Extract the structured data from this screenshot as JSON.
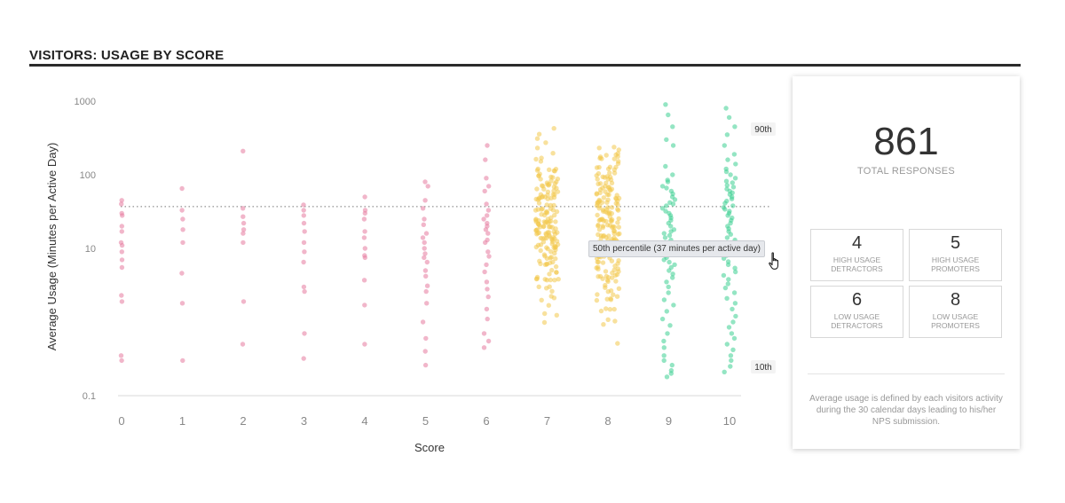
{
  "header": {
    "title": "VISITORS: USAGE BY SCORE"
  },
  "chart_data": {
    "type": "scatter",
    "title": "",
    "xlabel": "Score",
    "ylabel": "Average Usage (Minutes per Active Day)",
    "yscale": "log",
    "ylim": [
      0.1,
      1000
    ],
    "yticks": [
      "0.1",
      "10",
      "100",
      "1000"
    ],
    "categories": [
      "0",
      "1",
      "2",
      "3",
      "4",
      "5",
      "6",
      "7",
      "8",
      "9",
      "10"
    ],
    "grid": false,
    "reference_lines": [
      {
        "label": "90th",
        "value": 600
      },
      {
        "label": "10th",
        "value": 0.3
      }
    ],
    "median_line": {
      "value": 37,
      "tooltip": "50th percentile (37 minutes per active day)"
    },
    "series": [
      {
        "name": "",
        "color": "#e57a9f",
        "scores": [
          0,
          1,
          2,
          3,
          4,
          5,
          6
        ]
      },
      {
        "name": "",
        "color": "#f2c94c",
        "scores": [
          7,
          8
        ]
      },
      {
        "name": "",
        "color": "#3ccf91",
        "scores": [
          9,
          10
        ]
      }
    ],
    "point_values": {
      "0": [
        45,
        40,
        30,
        28,
        20,
        17,
        12,
        11,
        9,
        7,
        5.5,
        2.3,
        1.9,
        0.35,
        0.3
      ],
      "1": [
        65,
        33,
        25,
        18,
        12,
        4.6,
        1.8,
        0.3
      ],
      "2": [
        210,
        35,
        27,
        22,
        18,
        16,
        12,
        1.9,
        0.5
      ],
      "3": [
        39,
        33,
        28,
        22,
        17,
        12,
        9,
        6.5,
        3,
        2.6,
        0.7,
        0.32
      ],
      "4": [
        50,
        33,
        30,
        25,
        17,
        14,
        10,
        8,
        7.5,
        3.7,
        1.7,
        0.5
      ],
      "5": [
        80,
        70,
        45,
        35,
        25,
        21,
        16,
        14,
        12,
        10,
        8.5,
        7.5,
        6.5,
        5,
        4.2,
        3.1,
        2.6,
        1.8,
        1,
        0.6,
        0.4,
        0.26
      ],
      "6": [
        250,
        160,
        90,
        70,
        60,
        40,
        33,
        28,
        25,
        22,
        20,
        18,
        16,
        13,
        12,
        9,
        7.8,
        6,
        4.8,
        3.5,
        2.8,
        2.2,
        1.5,
        1.1,
        0.7,
        0.55,
        0.45
      ],
      "9": [
        900,
        650,
        450,
        300,
        250,
        130,
        100,
        85,
        80,
        70,
        66,
        60,
        55,
        50,
        46,
        42,
        40,
        38,
        35,
        32,
        30,
        28,
        26,
        24,
        22,
        20,
        18,
        17,
        16,
        15,
        14,
        13,
        12,
        11,
        10,
        9,
        8.5,
        8,
        7.5,
        7,
        6.5,
        6,
        5.5,
        5,
        4.5,
        4,
        3.5,
        3,
        2.5,
        2,
        1.7,
        1.4,
        1.1,
        0.9,
        0.7,
        0.55,
        0.45,
        0.35,
        0.3,
        0.26,
        0.22,
        0.2,
        0.18
      ],
      "10": [
        800,
        600,
        450,
        350,
        250,
        190,
        160,
        140,
        120,
        110,
        100,
        90,
        82,
        78,
        72,
        68,
        64,
        60,
        57,
        54,
        50,
        47,
        44,
        41,
        38,
        36,
        34,
        32,
        30,
        28,
        26,
        24,
        22,
        20,
        18.5,
        17,
        15.5,
        14,
        13,
        12,
        11,
        10,
        9,
        8,
        7.3,
        6.6,
        6,
        5.4,
        4.8,
        4.3,
        3.8,
        3.3,
        2.9,
        2.5,
        2.1,
        1.8,
        1.5,
        1.2,
        1,
        0.85,
        0.7,
        0.6,
        0.5,
        0.42,
        0.35,
        0.3,
        0.25,
        0.21
      ]
    },
    "dense_clusters": {
      "7": {
        "count": 170,
        "range": [
          0.3,
          700
        ],
        "center": 18
      },
      "8": {
        "count": 200,
        "range": [
          0.18,
          240
        ],
        "center": 20
      }
    }
  },
  "summary": {
    "total": "861",
    "total_label": "TOTAL RESPONSES",
    "boxes": [
      {
        "value": "4",
        "label_line1": "HIGH USAGE",
        "label_line2": "DETRACTORS"
      },
      {
        "value": "5",
        "label_line1": "HIGH USAGE",
        "label_line2": "PROMOTERS"
      },
      {
        "value": "6",
        "label_line1": "LOW USAGE",
        "label_line2": "DETRACTORS"
      },
      {
        "value": "8",
        "label_line1": "LOW USAGE",
        "label_line2": "PROMOTERS"
      }
    ],
    "note": "Average usage is defined by each visitors activity during the 30 calendar days leading to his/her NPS submission."
  },
  "icons": {
    "cursor": "hand-pointer-icon"
  }
}
